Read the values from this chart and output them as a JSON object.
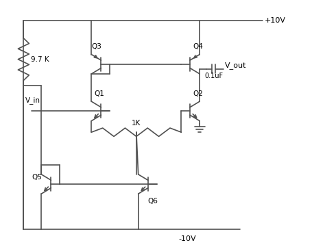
{
  "bg_color": "#ffffff",
  "line_color": "#505050",
  "lw": 1.2,
  "labels": {
    "plus10v": "+10V",
    "minus10v": "-10V",
    "vin": "V_in",
    "vout": "V_out",
    "r1": "9.7 K",
    "r2": "1K",
    "c1": "0.1uF",
    "q1": "Q1",
    "q2": "Q2",
    "q3": "Q3",
    "q4": "Q4",
    "q5": "Q5",
    "q6": "Q6"
  },
  "xlim": [
    0,
    10
  ],
  "ylim": [
    0,
    7.5
  ]
}
